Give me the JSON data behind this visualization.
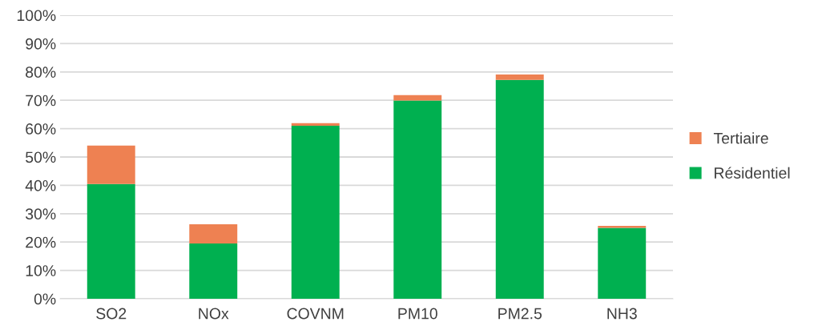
{
  "chart_data": {
    "type": "bar",
    "stacked": true,
    "categories": [
      "SO2",
      "NOx",
      "COVNM",
      "PM10",
      "PM2.5",
      "NH3"
    ],
    "series": [
      {
        "name": "Résidentiel",
        "color": "#00b050",
        "values": [
          40.5,
          19.5,
          61.0,
          69.9,
          77.2,
          25.0
        ]
      },
      {
        "name": "Tertiaire",
        "color": "#ee8152",
        "values": [
          13.5,
          6.8,
          0.9,
          1.9,
          1.9,
          0.7
        ]
      }
    ],
    "ylim": [
      0,
      100
    ],
    "yticks": [
      {
        "value": 0,
        "label": "0%"
      },
      {
        "value": 10,
        "label": "10%"
      },
      {
        "value": 20,
        "label": "20%"
      },
      {
        "value": 30,
        "label": "30%"
      },
      {
        "value": 40,
        "label": "40%"
      },
      {
        "value": 50,
        "label": "50%"
      },
      {
        "value": 60,
        "label": "60%"
      },
      {
        "value": 70,
        "label": "70%"
      },
      {
        "value": 80,
        "label": "80%"
      },
      {
        "value": 90,
        "label": "90%"
      },
      {
        "value": 100,
        "label": "100%"
      }
    ],
    "grid": "y",
    "legend": "right"
  }
}
